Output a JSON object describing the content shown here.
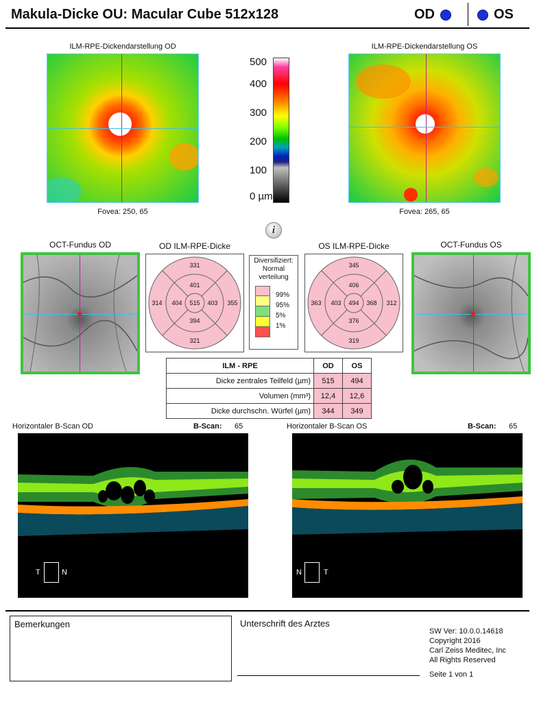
{
  "header": {
    "title": "Makula-Dicke OU: Macular Cube 512x128",
    "od_label": "OD",
    "os_label": "OS"
  },
  "maps": {
    "od_title": "ILM-RPE-Dickendarstellung OD",
    "os_title": "ILM-RPE-Dickendarstellung OS",
    "od_fovea": "Fovea: 250, 65",
    "os_fovea": "Fovea: 265, 65",
    "scale_labels": [
      "500",
      "400",
      "300",
      "200",
      "100",
      "0 µm"
    ]
  },
  "fundus": {
    "od_title": "OCT-Fundus OD",
    "os_title": "OCT-Fundus OS"
  },
  "grids": {
    "od_title": "OD ILM-RPE-Dicke",
    "os_title": "OS ILM-RPE-Dicke",
    "od": {
      "outer_top": "331",
      "outer_left": "314",
      "outer_right": "355",
      "outer_bottom": "321",
      "inner_top": "401",
      "inner_left": "404",
      "inner_right": "403",
      "inner_bottom": "394",
      "center": "515"
    },
    "os": {
      "outer_top": "345",
      "outer_left": "363",
      "outer_right": "312",
      "outer_bottom": "319",
      "inner_top": "406",
      "inner_left": "403",
      "inner_right": "368",
      "inner_bottom": "376",
      "center": "494"
    }
  },
  "legend": {
    "title_lines": [
      "Diversifiziert:",
      "Normal",
      "verteilung"
    ],
    "entries": [
      {
        "label": "99%",
        "color": "#f7c0cc"
      },
      {
        "label": "95%",
        "color": "#ffff80"
      },
      {
        "label": "5%",
        "color": "#7fe07f"
      },
      {
        "label": "1%",
        "color": "#ffff33"
      },
      {
        "label": "",
        "color": "#ff5050"
      }
    ]
  },
  "table": {
    "headers": [
      "ILM - RPE",
      "OD",
      "OS"
    ],
    "rows": [
      {
        "label": "Dicke zentrales Teilfeld (µm)",
        "od": "515",
        "os": "494"
      },
      {
        "label": "Volumen (mm³)",
        "od": "12,4",
        "os": "12,6"
      },
      {
        "label": "Dicke durchschn. Würfel (µm)",
        "od": "344",
        "os": "349"
      }
    ]
  },
  "bscan": {
    "od_title": "Horizontaler B-Scan OD",
    "os_title": "Horizontaler B-Scan OS",
    "bscan_label": "B-Scan:",
    "od_value": "65",
    "os_value": "65",
    "od_left": "T",
    "od_right": "N",
    "os_left": "N",
    "os_right": "T"
  },
  "footer": {
    "remarks_label": "Bemerkungen",
    "signature_label": "Unterschrift des Arztes",
    "sw_version": "SW Ver: 10.0.0.14618",
    "copyright": "Copyright 2016",
    "company": "Carl Zeiss Meditec, Inc",
    "rights": "All Rights Reserved",
    "page": "Seite 1 von 1"
  },
  "colors": {
    "eye_dot": "#1a2fd6",
    "fundus_border": "#3ec43e",
    "normal_pink": "#f7c0cc"
  }
}
